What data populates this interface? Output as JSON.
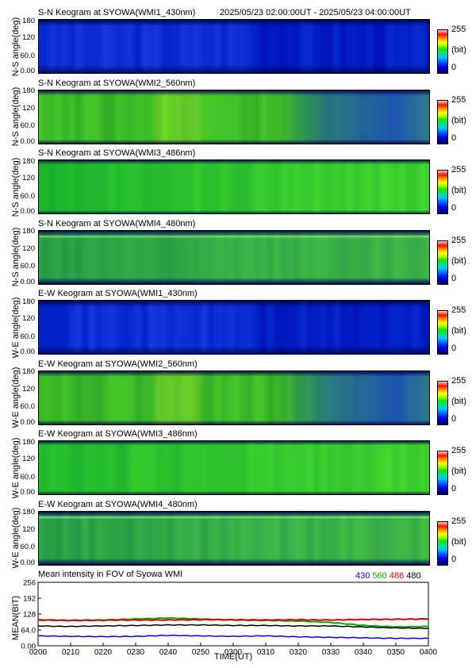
{
  "header": {
    "time_range": "2025/05/23 02:00:00UT - 2025/05/23 04:00:00UT"
  },
  "colors": {
    "blue_base": "#1030d8",
    "green_base": "#30d020",
    "line_430": "#0000ff",
    "line_560": "#00b000",
    "line_486": "#e00000",
    "line_480": "#000000"
  },
  "panels": [
    {
      "title": "S-N Keogram at SYOWA(WMI1_430nm)",
      "ylabel": "N-S angle(deg)",
      "yticks": [
        "180",
        "120",
        "60.0",
        "0.00"
      ],
      "cbar": {
        "max": "255",
        "unit": "(bit)",
        "min": "0"
      },
      "style": "blue"
    },
    {
      "title": "S-N Keogram at SYOWA(WMI2_560nm)",
      "ylabel": "N-S angle(deg)",
      "yticks": [
        "180",
        "120",
        "60.0",
        "0.00"
      ],
      "cbar": {
        "max": "255",
        "unit": "(bit)",
        "min": "0"
      },
      "style": "green_fading"
    },
    {
      "title": "S-N Keogram at SYOWA(WMI3_486nm)",
      "ylabel": "N-S angle(deg)",
      "yticks": [
        "180",
        "120",
        "60.0",
        "0.00"
      ],
      "cbar": {
        "max": "255",
        "unit": "(bit)",
        "min": "0"
      },
      "style": "green"
    },
    {
      "title": "S-N Keogram at SYOWA(WMI4_480nm)",
      "ylabel": "N-S angle(deg)",
      "yticks": [
        "180",
        "120",
        "60.0",
        "0.00"
      ],
      "cbar": {
        "max": "255",
        "unit": "(bit)",
        "min": "0"
      },
      "style": "green_banded"
    },
    {
      "title": "E-W Keogram at SYOWA(WMI1_430nm)",
      "ylabel": "W-E angle(deg)",
      "yticks": [
        "180",
        "120",
        "60.0",
        "0.00"
      ],
      "cbar": {
        "max": "255",
        "unit": "(bit)",
        "min": "0"
      },
      "style": "blue"
    },
    {
      "title": "E-W Keogram at SYOWA(WMI2_560nm)",
      "ylabel": "W-E angle(deg)",
      "yticks": [
        "180",
        "120",
        "60.0",
        "0.00"
      ],
      "cbar": {
        "max": "255",
        "unit": "(bit)",
        "min": "0"
      },
      "style": "green_fading"
    },
    {
      "title": "E-W Keogram at SYOWA(WMI3_486nm)",
      "ylabel": "W-E angle(deg)",
      "yticks": [
        "180",
        "120",
        "60.0",
        "0.00"
      ],
      "cbar": {
        "max": "255",
        "unit": "(bit)",
        "min": "0"
      },
      "style": "green"
    },
    {
      "title": "E-W Keogram at SYOWA(WMI4_480nm)",
      "ylabel": "W-E angle(deg)",
      "yticks": [
        "180",
        "120",
        "60.0",
        "0.00"
      ],
      "cbar": {
        "max": "255",
        "unit": "(bit)",
        "min": "0"
      },
      "style": "green_banded"
    }
  ],
  "chart_data": {
    "type": "line",
    "title": "Mean intensity in FOV of Syowa WMI",
    "xlabel": "TIME(UT)",
    "ylabel": "MEAN(BIT)",
    "x_ticks": [
      "0200",
      "0210",
      "0220",
      "0230",
      "0240",
      "0250",
      "0300",
      "0310",
      "0320",
      "0330",
      "0340",
      "0350",
      "0400"
    ],
    "y_ticks": [
      "256",
      "192",
      "128",
      "64.0",
      "0.00"
    ],
    "ylim": [
      0,
      256
    ],
    "x": [
      0,
      10,
      20,
      30,
      40,
      50,
      60,
      70,
      80,
      90,
      100,
      110,
      120
    ],
    "series": [
      {
        "name": "430",
        "color": "#0000ff",
        "values": [
          40,
          38,
          37,
          38,
          42,
          40,
          38,
          40,
          36,
          34,
          32,
          30,
          30
        ]
      },
      {
        "name": "560",
        "color": "#00b000",
        "values": [
          105,
          103,
          104,
          108,
          112,
          108,
          104,
          102,
          100,
          94,
          82,
          76,
          78
        ]
      },
      {
        "name": "486",
        "color": "#e00000",
        "values": [
          104,
          102,
          103,
          104,
          104,
          105,
          105,
          104,
          105,
          104,
          106,
          107,
          108
        ]
      },
      {
        "name": "480",
        "color": "#000000",
        "values": [
          80,
          78,
          80,
          82,
          84,
          84,
          82,
          82,
          80,
          80,
          76,
          72,
          70
        ]
      }
    ]
  }
}
